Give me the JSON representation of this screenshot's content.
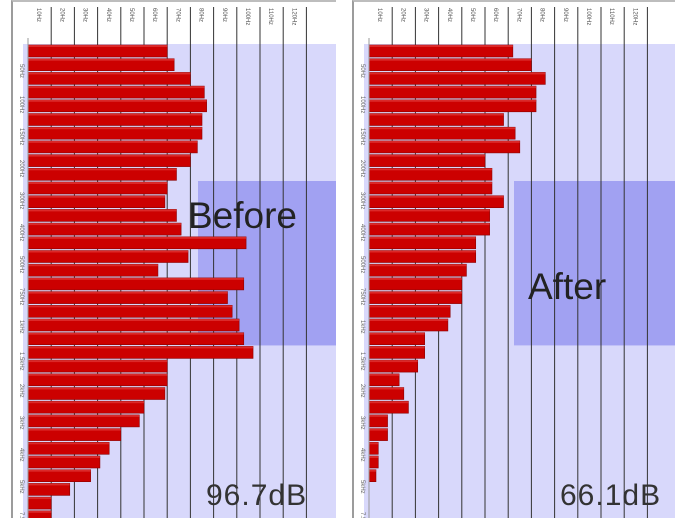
{
  "colors": {
    "bar": "#cc0000",
    "bar_edge": "#8a0000",
    "band_light": "#d8d8fb",
    "band_mid": "#a8a8f4",
    "gridline": "#333333",
    "axis": "#999999"
  },
  "chart_data": [
    {
      "type": "bar",
      "orientation": "horizontal",
      "label": "Before",
      "annotation": "96.7dB",
      "tick_labels": [
        "10Hz",
        "20Hz",
        "30Hz",
        "40Hz",
        "50Hz",
        "60Hz",
        "70Hz",
        "80Hz",
        "90Hz",
        "100Hz",
        "110Hz",
        "120Hz"
      ],
      "row_labels": [
        "50Hz",
        "100Hz",
        "150Hz",
        "200Hz",
        "300Hz",
        "400Hz",
        "500Hz",
        "750Hz",
        "1kHz",
        "1.5kHz",
        "2kHz",
        "3kHz",
        "4kHz",
        "5kHz",
        "7.5kHz"
      ],
      "xlim": [
        0,
        120
      ],
      "highlight_band_rows": [
        10,
        21
      ],
      "values": [
        60,
        63,
        70,
        76,
        77,
        75,
        75,
        73,
        70,
        64,
        60,
        59,
        64,
        66,
        94,
        69,
        56,
        93,
        86,
        88,
        91,
        93,
        97,
        60,
        60,
        59,
        50,
        48,
        40,
        35,
        31,
        27,
        18,
        10,
        10
      ]
    },
    {
      "type": "bar",
      "orientation": "horizontal",
      "label": "After",
      "annotation": "66.1dB",
      "tick_labels": [
        "10Hz",
        "20Hz",
        "30Hz",
        "40Hz",
        "50Hz",
        "60Hz",
        "70Hz",
        "80Hz",
        "90Hz",
        "100Hz",
        "110Hz",
        "120Hz"
      ],
      "row_labels": [
        "50Hz",
        "100Hz",
        "150Hz",
        "200Hz",
        "300Hz",
        "400Hz",
        "500Hz",
        "750Hz",
        "1kHz",
        "1.5kHz",
        "2kHz",
        "3kHz",
        "4kHz",
        "5kHz",
        "7.5kHz"
      ],
      "xlim": [
        0,
        120
      ],
      "highlight_band_rows": [
        10,
        21
      ],
      "values": [
        62,
        70,
        76,
        72,
        72,
        58,
        63,
        65,
        50,
        53,
        53,
        58,
        52,
        52,
        46,
        46,
        42,
        40,
        40,
        35,
        34,
        24,
        24,
        21,
        13,
        15,
        17,
        8,
        8,
        4,
        4,
        3
      ]
    }
  ]
}
